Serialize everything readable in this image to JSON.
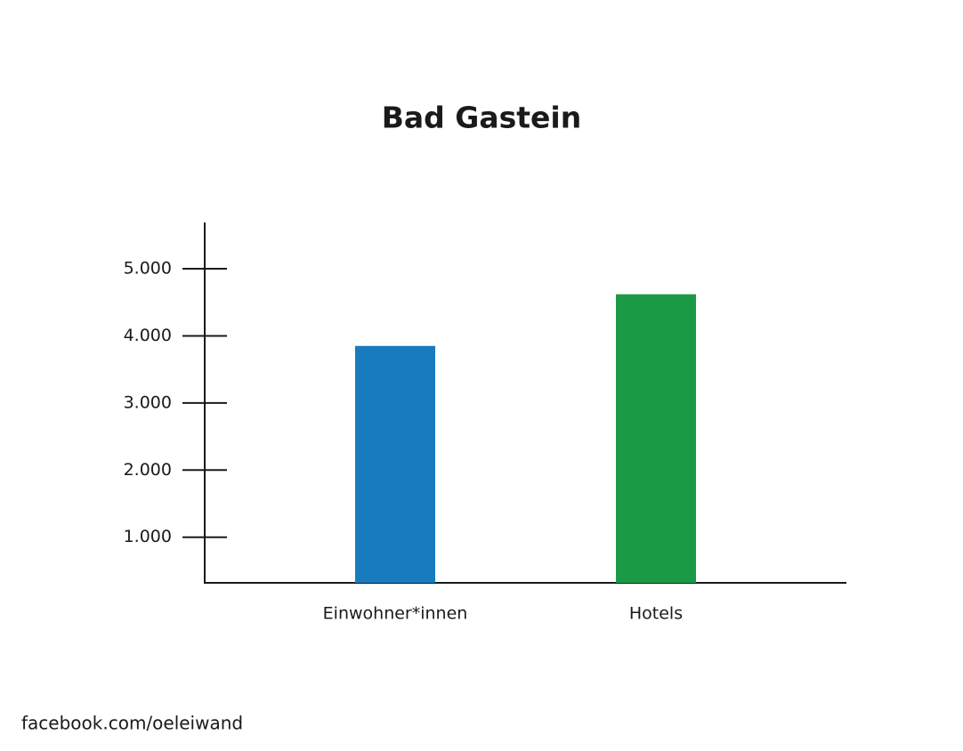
{
  "chart_data": {
    "type": "bar",
    "title": "Bad Gastein",
    "categories": [
      "Einwohner*innen",
      "Hotels"
    ],
    "values": [
      3850,
      4620
    ],
    "colors": [
      "#187bbf",
      "#1a9a44"
    ],
    "ylim": [
      320,
      5690
    ],
    "yticks": [
      {
        "value": 1000,
        "label": "1.000"
      },
      {
        "value": 2000,
        "label": "2.000"
      },
      {
        "value": 3000,
        "label": "3.000"
      },
      {
        "value": 4000,
        "label": "4.000"
      },
      {
        "value": 5000,
        "label": "5.000"
      }
    ],
    "grid": false
  },
  "footer": "facebook.com/oeleiwand"
}
